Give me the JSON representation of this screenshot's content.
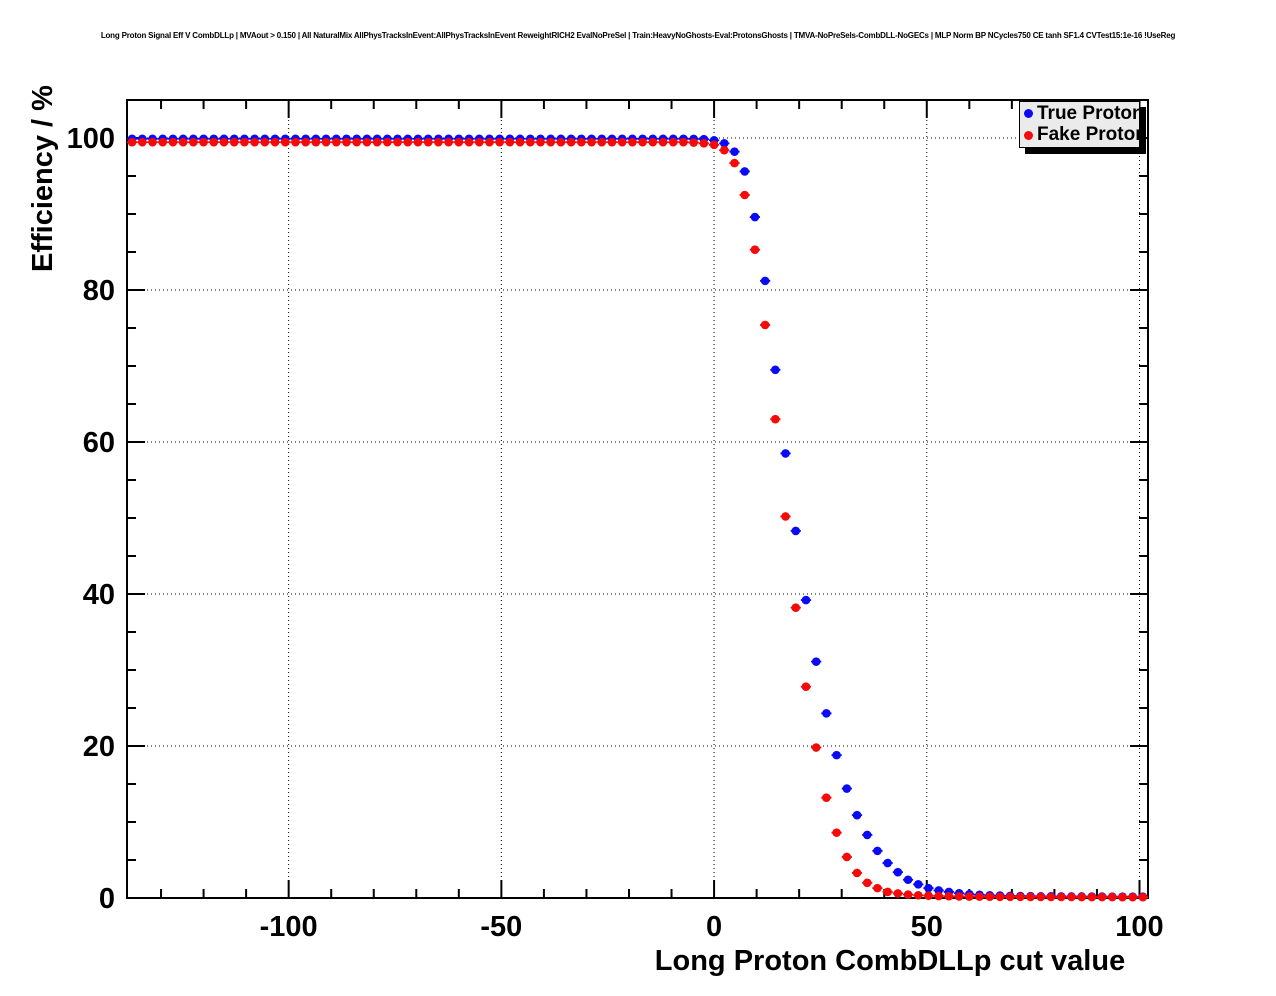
{
  "header": {
    "title": "Long Proton Signal Eff V CombDLLp | MVAout > 0.150 | All NaturalMix AllPhysTracksInEvent:AllPhysTracksInEvent ReweightRICH2 EvalNoPreSel | Train:HeavyNoGhosts-Eval:ProtonsGhosts | TMVA-NoPreSels-CombDLL-NoGECs | MLP Norm BP NCycles750 CE tanh SF1.4 CVTest15:1e-16 !UseReg"
  },
  "legend": {
    "position": "top-right",
    "background": "#ebebeb",
    "border_color": "#000000",
    "entries": [
      {
        "label": "True Proton",
        "color": "#0a0af5",
        "marker": "filled-circle"
      },
      {
        "label": "Fake Proton",
        "color": "#f50a0a",
        "marker": "filled-circle"
      }
    ]
  },
  "chart_data": {
    "type": "scatter",
    "title": "",
    "xlabel": "Long Proton CombDLLp cut value",
    "ylabel": "Efficiency / %",
    "xlim": [
      -138,
      102
    ],
    "ylim": [
      0,
      105
    ],
    "grid": "dotted",
    "x_major_ticks": [
      -100,
      -50,
      0,
      50,
      100
    ],
    "x_tick_labels": [
      "-100",
      "-50",
      "0",
      "50",
      "100"
    ],
    "x_minor_step": 10,
    "y_major_ticks": [
      0,
      20,
      40,
      60,
      80,
      100
    ],
    "y_tick_labels": [
      "0",
      "20",
      "40",
      "60",
      "80",
      "100"
    ],
    "y_minor_step": 5,
    "x_error_halfwidth": 1.2,
    "series": [
      {
        "name": "True Proton",
        "color": "#0a0af5",
        "x_start": -136.8,
        "x_step": 2.4,
        "flat_count": 55,
        "flat_y": 99.9,
        "drop_values": [
          99.88,
          99.85,
          99.7,
          99.3,
          98.2,
          95.6,
          89.6,
          81.2,
          69.5,
          58.5,
          48.3,
          39.2,
          31.1,
          24.3,
          18.8,
          14.4,
          10.9,
          8.3,
          6.2,
          4.6,
          3.4,
          2.4,
          1.8,
          1.3,
          1.0,
          0.8,
          0.62,
          0.5,
          0.42,
          0.36,
          0.32,
          0.28,
          0.26,
          0.24,
          0.23,
          0.22,
          0.21,
          0.2,
          0.2,
          0.19,
          0.19,
          0.18,
          0.18,
          0.18,
          0.17
        ]
      },
      {
        "name": "Fake Proton",
        "color": "#f50a0a",
        "x_start": -136.8,
        "x_step": 2.4,
        "flat_count": 55,
        "flat_y": 99.45,
        "drop_values": [
          99.4,
          99.3,
          99.1,
          98.4,
          96.7,
          92.5,
          85.3,
          75.4,
          63.0,
          50.2,
          38.2,
          27.8,
          19.8,
          13.2,
          8.6,
          5.4,
          3.3,
          2.0,
          1.3,
          0.8,
          0.6,
          0.45,
          0.36,
          0.3,
          0.26,
          0.23,
          0.21,
          0.19,
          0.18,
          0.17,
          0.16,
          0.15,
          0.15,
          0.14,
          0.14,
          0.13,
          0.13,
          0.13,
          0.12,
          0.12,
          0.12,
          0.12,
          0.11,
          0.11,
          0.11
        ]
      }
    ]
  }
}
